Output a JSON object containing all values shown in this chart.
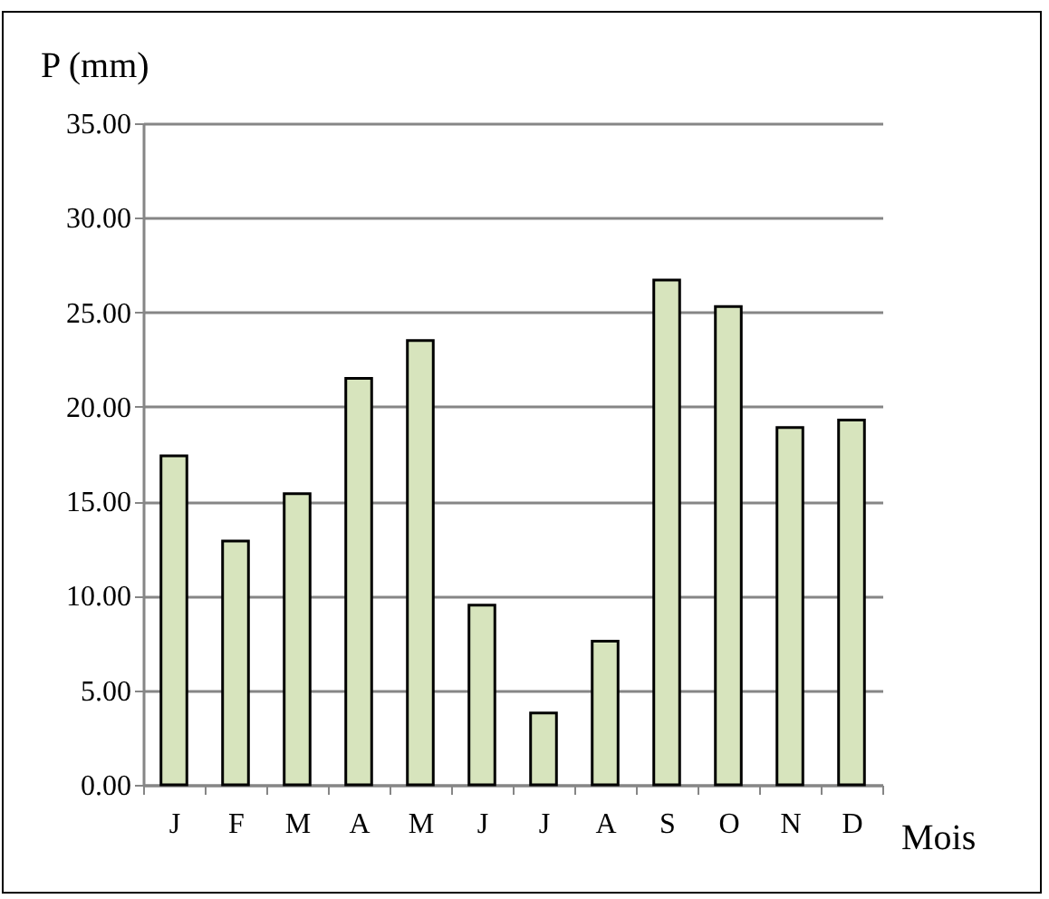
{
  "chart_data": {
    "type": "bar",
    "ylabel": "P (mm)",
    "xlabel": "Mois",
    "categories": [
      "J",
      "F",
      "M",
      "A",
      "M",
      "J",
      "J",
      "A",
      "S",
      "O",
      "N",
      "D"
    ],
    "values": [
      17.4,
      12.9,
      15.4,
      21.5,
      23.5,
      9.5,
      3.8,
      7.6,
      26.7,
      25.3,
      18.9,
      19.3
    ],
    "color": "#d7e4bd",
    "ylim": [
      0,
      35
    ],
    "yticks": [
      {
        "value": 0,
        "label": "0.00"
      },
      {
        "value": 5,
        "label": "5.00"
      },
      {
        "value": 10,
        "label": "10.00"
      },
      {
        "value": 15,
        "label": "15.00"
      },
      {
        "value": 20,
        "label": "20.00"
      },
      {
        "value": 25,
        "label": "25.00"
      },
      {
        "value": 30,
        "label": "30.00"
      },
      {
        "value": 35,
        "label": "35.00"
      }
    ],
    "grid": "y",
    "legend": false
  }
}
